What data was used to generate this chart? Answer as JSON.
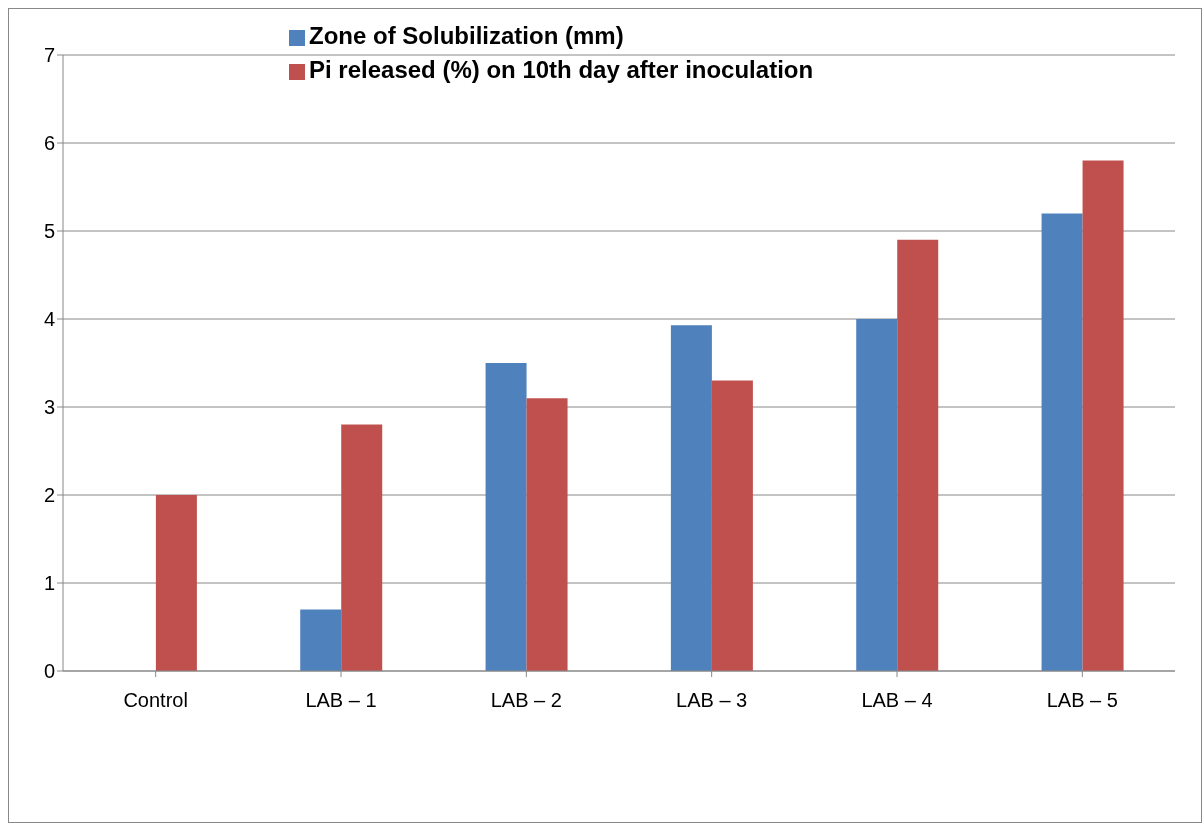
{
  "chart_data": {
    "type": "bar",
    "categories": [
      "Control",
      "LAB – 1",
      "LAB – 2",
      "LAB – 3",
      "LAB – 4",
      "LAB – 5"
    ],
    "series": [
      {
        "name": "Zone of Solubilization (mm)",
        "color": "#4f81bd",
        "values": [
          0,
          0.7,
          3.5,
          3.93,
          4.0,
          5.2
        ]
      },
      {
        "name": "Pi released (%) on 10th day after inoculation",
        "color": "#c0504d",
        "values": [
          2.0,
          2.8,
          3.1,
          3.3,
          4.9,
          5.8
        ]
      }
    ],
    "ylim": [
      0,
      7
    ],
    "yticks": [
      0,
      1,
      2,
      3,
      4,
      5,
      6,
      7
    ],
    "grid": "y",
    "legend": "top"
  }
}
